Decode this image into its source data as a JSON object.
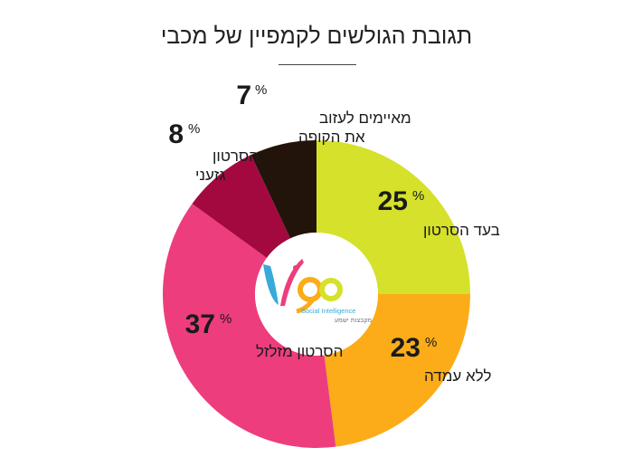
{
  "chart_data": {
    "type": "pie",
    "variant": "donut",
    "title": "תגובת הגולשים לקמפיין של מכבי",
    "percent_sign": "%",
    "slices": [
      {
        "label": "בעד הסרטון",
        "value": 25,
        "color": "#d5e12a"
      },
      {
        "label": "ללא עמדה",
        "value": 23,
        "color": "#fbac18"
      },
      {
        "label": "הסרטון מזלזל",
        "value": 37,
        "color": "#ed3d7c"
      },
      {
        "label": "הסרטון גזעני",
        "value": 8,
        "color": "#a3093f"
      },
      {
        "label": "מאיימים לעזוב את הקופה",
        "value": 7,
        "color": "#23140b"
      }
    ]
  },
  "logo": {
    "name": "vigo",
    "tagline": "Social Intelligence",
    "subtagline": "מקבצות ישמע"
  }
}
